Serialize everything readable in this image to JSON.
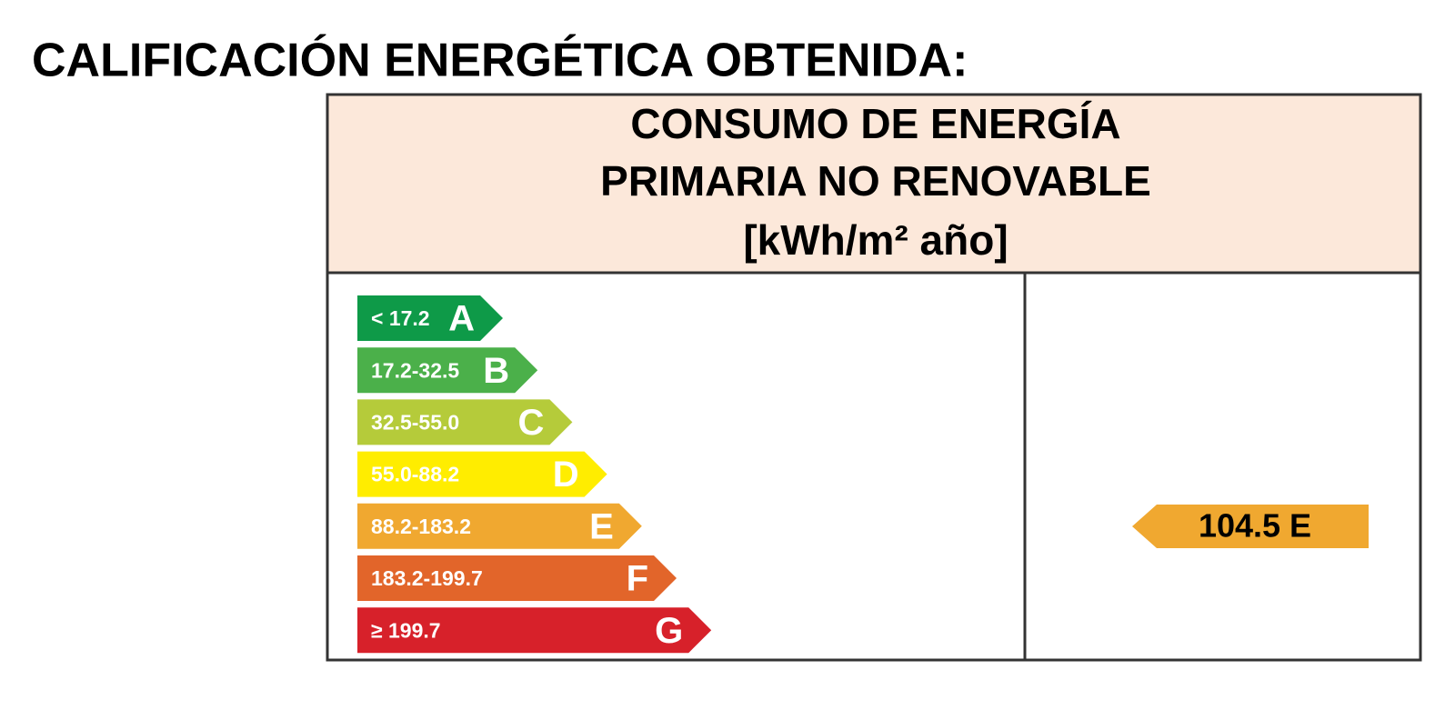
{
  "title": "CALIFICACIÓN ENERGÉTICA OBTENIDA:",
  "table": {
    "header": [
      "CONSUMO DE ENERGÍA",
      "PRIMARIA NO RENOVABLE",
      "[kWh/m² año]"
    ],
    "header_color": "#fce8da",
    "classes": [
      {
        "range": "< 17.2",
        "letter": "A",
        "color": "#0e9a48"
      },
      {
        "range": "17.2-32.5",
        "letter": "B",
        "color": "#4bb04a"
      },
      {
        "range": "32.5-55.0",
        "letter": "C",
        "color": "#b5cb3a"
      },
      {
        "range": "55.0-88.2",
        "letter": "D",
        "color": "#ffed00"
      },
      {
        "range": "88.2-183.2",
        "letter": "E",
        "color": "#f0a830"
      },
      {
        "range": "183.2-199.7",
        "letter": "F",
        "color": "#e2652a"
      },
      {
        "range": "≥ 199.7",
        "letter": "G",
        "color": "#d7212a"
      }
    ],
    "rating": {
      "label": "104.5 E",
      "color": "#f0a830"
    }
  }
}
